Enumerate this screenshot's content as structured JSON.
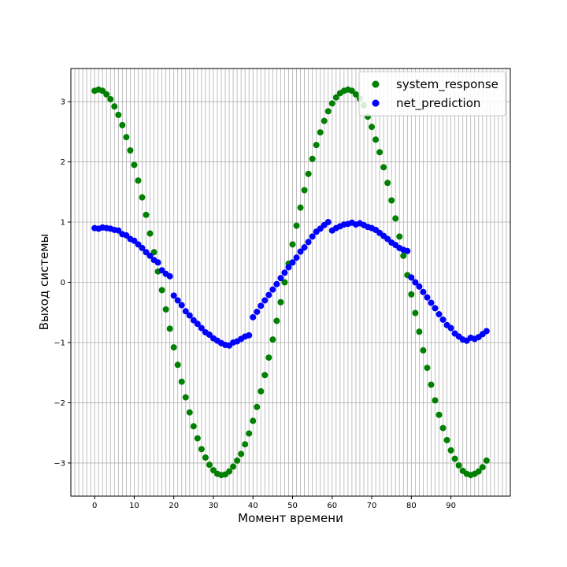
{
  "chart_data": {
    "type": "scatter",
    "title": "",
    "xlabel": "Момент времени",
    "ylabel": "Выход системы",
    "xlim": [
      -6,
      105
    ],
    "ylim": [
      -3.55,
      3.55
    ],
    "xticks": [
      0,
      10,
      20,
      30,
      40,
      50,
      60,
      70,
      80,
      90
    ],
    "yticks": [
      -3,
      -2,
      -1,
      0,
      1,
      2,
      3
    ],
    "grid": "vertical line at every integer x, horizontal lines at y ticks",
    "legend_position": "top-right",
    "series": [
      {
        "name": "system_response",
        "color": "#008000",
        "x": [
          0,
          1,
          2,
          3,
          4,
          5,
          6,
          7,
          8,
          9,
          10,
          11,
          12,
          13,
          14,
          15,
          16,
          17,
          18,
          19,
          20,
          21,
          22,
          23,
          24,
          25,
          26,
          27,
          28,
          29,
          30,
          31,
          32,
          33,
          34,
          35,
          36,
          37,
          38,
          39,
          40,
          41,
          42,
          43,
          44,
          45,
          46,
          47,
          48,
          49,
          50,
          51,
          52,
          53,
          54,
          55,
          56,
          57,
          58,
          59,
          60,
          61,
          62,
          63,
          64,
          65,
          66,
          67,
          68,
          69,
          70,
          71,
          72,
          73,
          74,
          75,
          76,
          77,
          78,
          79,
          80,
          81,
          82,
          83,
          84,
          85,
          86,
          87,
          88,
          89,
          90,
          91,
          92,
          93,
          94,
          95,
          96,
          97,
          98,
          99
        ],
        "y": [
          3.18,
          3.2,
          3.18,
          3.12,
          3.04,
          2.92,
          2.78,
          2.61,
          2.41,
          2.19,
          1.95,
          1.69,
          1.41,
          1.12,
          0.81,
          0.5,
          0.18,
          -0.13,
          -0.45,
          -0.77,
          -1.08,
          -1.37,
          -1.65,
          -1.91,
          -2.16,
          -2.39,
          -2.59,
          -2.77,
          -2.91,
          -3.03,
          -3.12,
          -3.18,
          -3.2,
          -3.19,
          -3.14,
          -3.06,
          -2.96,
          -2.85,
          -2.69,
          -2.51,
          -2.3,
          -2.07,
          -1.81,
          -1.54,
          -1.25,
          -0.95,
          -0.64,
          -0.33,
          0.0,
          0.31,
          0.63,
          0.94,
          1.24,
          1.53,
          1.8,
          2.05,
          2.28,
          2.49,
          2.68,
          2.84,
          2.97,
          3.07,
          3.14,
          3.18,
          3.2,
          3.18,
          3.12,
          3.05,
          2.94,
          2.75,
          2.58,
          2.37,
          2.16,
          1.91,
          1.65,
          1.36,
          1.06,
          0.76,
          0.44,
          0.12,
          -0.2,
          -0.51,
          -0.82,
          -1.13,
          -1.42,
          -1.7,
          -1.96,
          -2.2,
          -2.42,
          -2.62,
          -2.79,
          -2.93,
          -3.04,
          -3.13,
          -3.18,
          -3.2,
          -3.18,
          -3.14,
          -3.07,
          -2.96
        ]
      },
      {
        "name": "net_prediction",
        "color": "#0000ff",
        "x": [
          0,
          1,
          2,
          3,
          4,
          5,
          6,
          7,
          8,
          9,
          10,
          11,
          12,
          13,
          14,
          15,
          16,
          17,
          18,
          19,
          20,
          21,
          22,
          23,
          24,
          25,
          26,
          27,
          28,
          29,
          30,
          31,
          32,
          33,
          34,
          35,
          36,
          37,
          38,
          39,
          40,
          41,
          42,
          43,
          44,
          45,
          46,
          47,
          48,
          49,
          50,
          51,
          52,
          53,
          54,
          55,
          56,
          57,
          58,
          59,
          60,
          61,
          62,
          63,
          64,
          65,
          66,
          67,
          68,
          69,
          70,
          71,
          72,
          73,
          74,
          75,
          76,
          77,
          78,
          79,
          80,
          81,
          82,
          83,
          84,
          85,
          86,
          87,
          88,
          89,
          90,
          91,
          92,
          93,
          94,
          95,
          96,
          97,
          98,
          99
        ],
        "y": [
          0.9,
          0.89,
          0.91,
          0.9,
          0.89,
          0.87,
          0.86,
          0.8,
          0.78,
          0.72,
          0.69,
          0.63,
          0.57,
          0.5,
          0.44,
          0.37,
          0.33,
          0.2,
          0.14,
          0.1,
          -0.22,
          -0.3,
          -0.38,
          -0.48,
          -0.55,
          -0.63,
          -0.69,
          -0.76,
          -0.83,
          -0.87,
          -0.93,
          -0.97,
          -1.01,
          -1.04,
          -1.05,
          -1.0,
          -0.98,
          -0.94,
          -0.9,
          -0.88,
          -0.58,
          -0.49,
          -0.39,
          -0.3,
          -0.21,
          -0.12,
          -0.03,
          0.07,
          0.16,
          0.25,
          0.33,
          0.41,
          0.51,
          0.58,
          0.67,
          0.76,
          0.84,
          0.89,
          0.95,
          1.0,
          0.86,
          0.9,
          0.93,
          0.96,
          0.97,
          0.99,
          0.96,
          0.98,
          0.95,
          0.92,
          0.9,
          0.87,
          0.82,
          0.77,
          0.72,
          0.66,
          0.62,
          0.57,
          0.54,
          0.52,
          0.08,
          0.0,
          -0.07,
          -0.16,
          -0.25,
          -0.34,
          -0.43,
          -0.53,
          -0.62,
          -0.71,
          -0.76,
          -0.85,
          -0.9,
          -0.95,
          -0.97,
          -0.92,
          -0.94,
          -0.91,
          -0.86,
          -0.81
        ]
      }
    ]
  }
}
